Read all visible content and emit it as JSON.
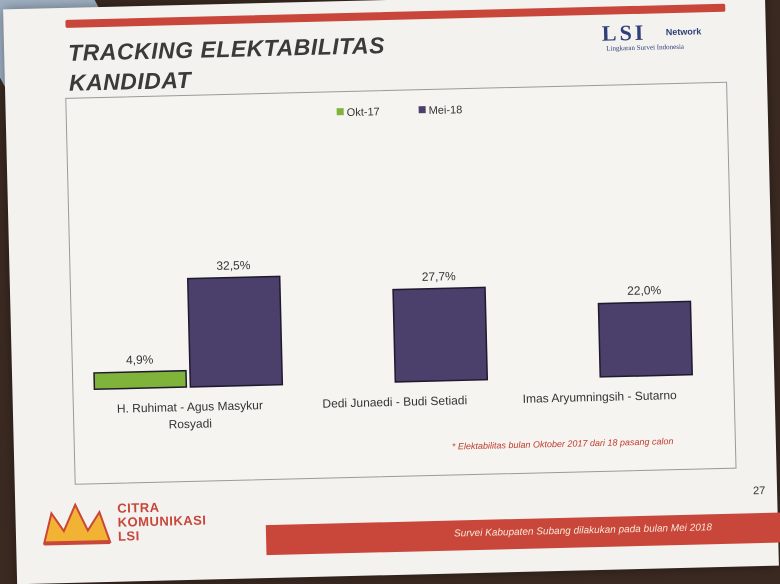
{
  "slide": {
    "title_line1": "TRACKING ELEKTABILITAS",
    "title_line2": "KANDIDAT",
    "logo_main": "LSI",
    "logo_network": "Network",
    "logo_sub": "Lingkaran Survei Indonesia",
    "note": "* Elektabilitas bulan Oktober 2017 dari 18 pasang calon",
    "brand_line1": "CITRA",
    "brand_line2": "KOMUNIKASI",
    "brand_line3": "LSI",
    "page_number": "27",
    "footer": "Survei Kabupaten Subang dilakukan pada bulan Mei 2018"
  },
  "colors": {
    "okt": "#7fb33a",
    "mei": "#4b3f6b",
    "accent": "#c8463a"
  },
  "chart_data": {
    "type": "bar",
    "title": "",
    "xlabel": "",
    "ylabel": "",
    "ylim": [
      0,
      60
    ],
    "grid": false,
    "legend_position": "top-center",
    "categories": [
      "H. Ruhimat - Agus Masykur Rosyadi",
      "Dedi Junaedi - Budi Setiadi",
      "Imas Aryumningsih - Sutarno"
    ],
    "category_lines": [
      [
        "H. Ruhimat - Agus Masykur",
        "Rosyadi"
      ],
      [
        "Dedi Junaedi - Budi Setiadi"
      ],
      [
        "Imas Aryumningsih - Sutarno"
      ]
    ],
    "series": [
      {
        "name": "Okt-17",
        "values": [
          4.9,
          null,
          null
        ],
        "labels": [
          "4,9%",
          null,
          null
        ]
      },
      {
        "name": "Mei-18",
        "values": [
          32.5,
          27.7,
          22.0
        ],
        "labels": [
          "32,5%",
          "27,7%",
          "22,0%"
        ]
      }
    ]
  }
}
